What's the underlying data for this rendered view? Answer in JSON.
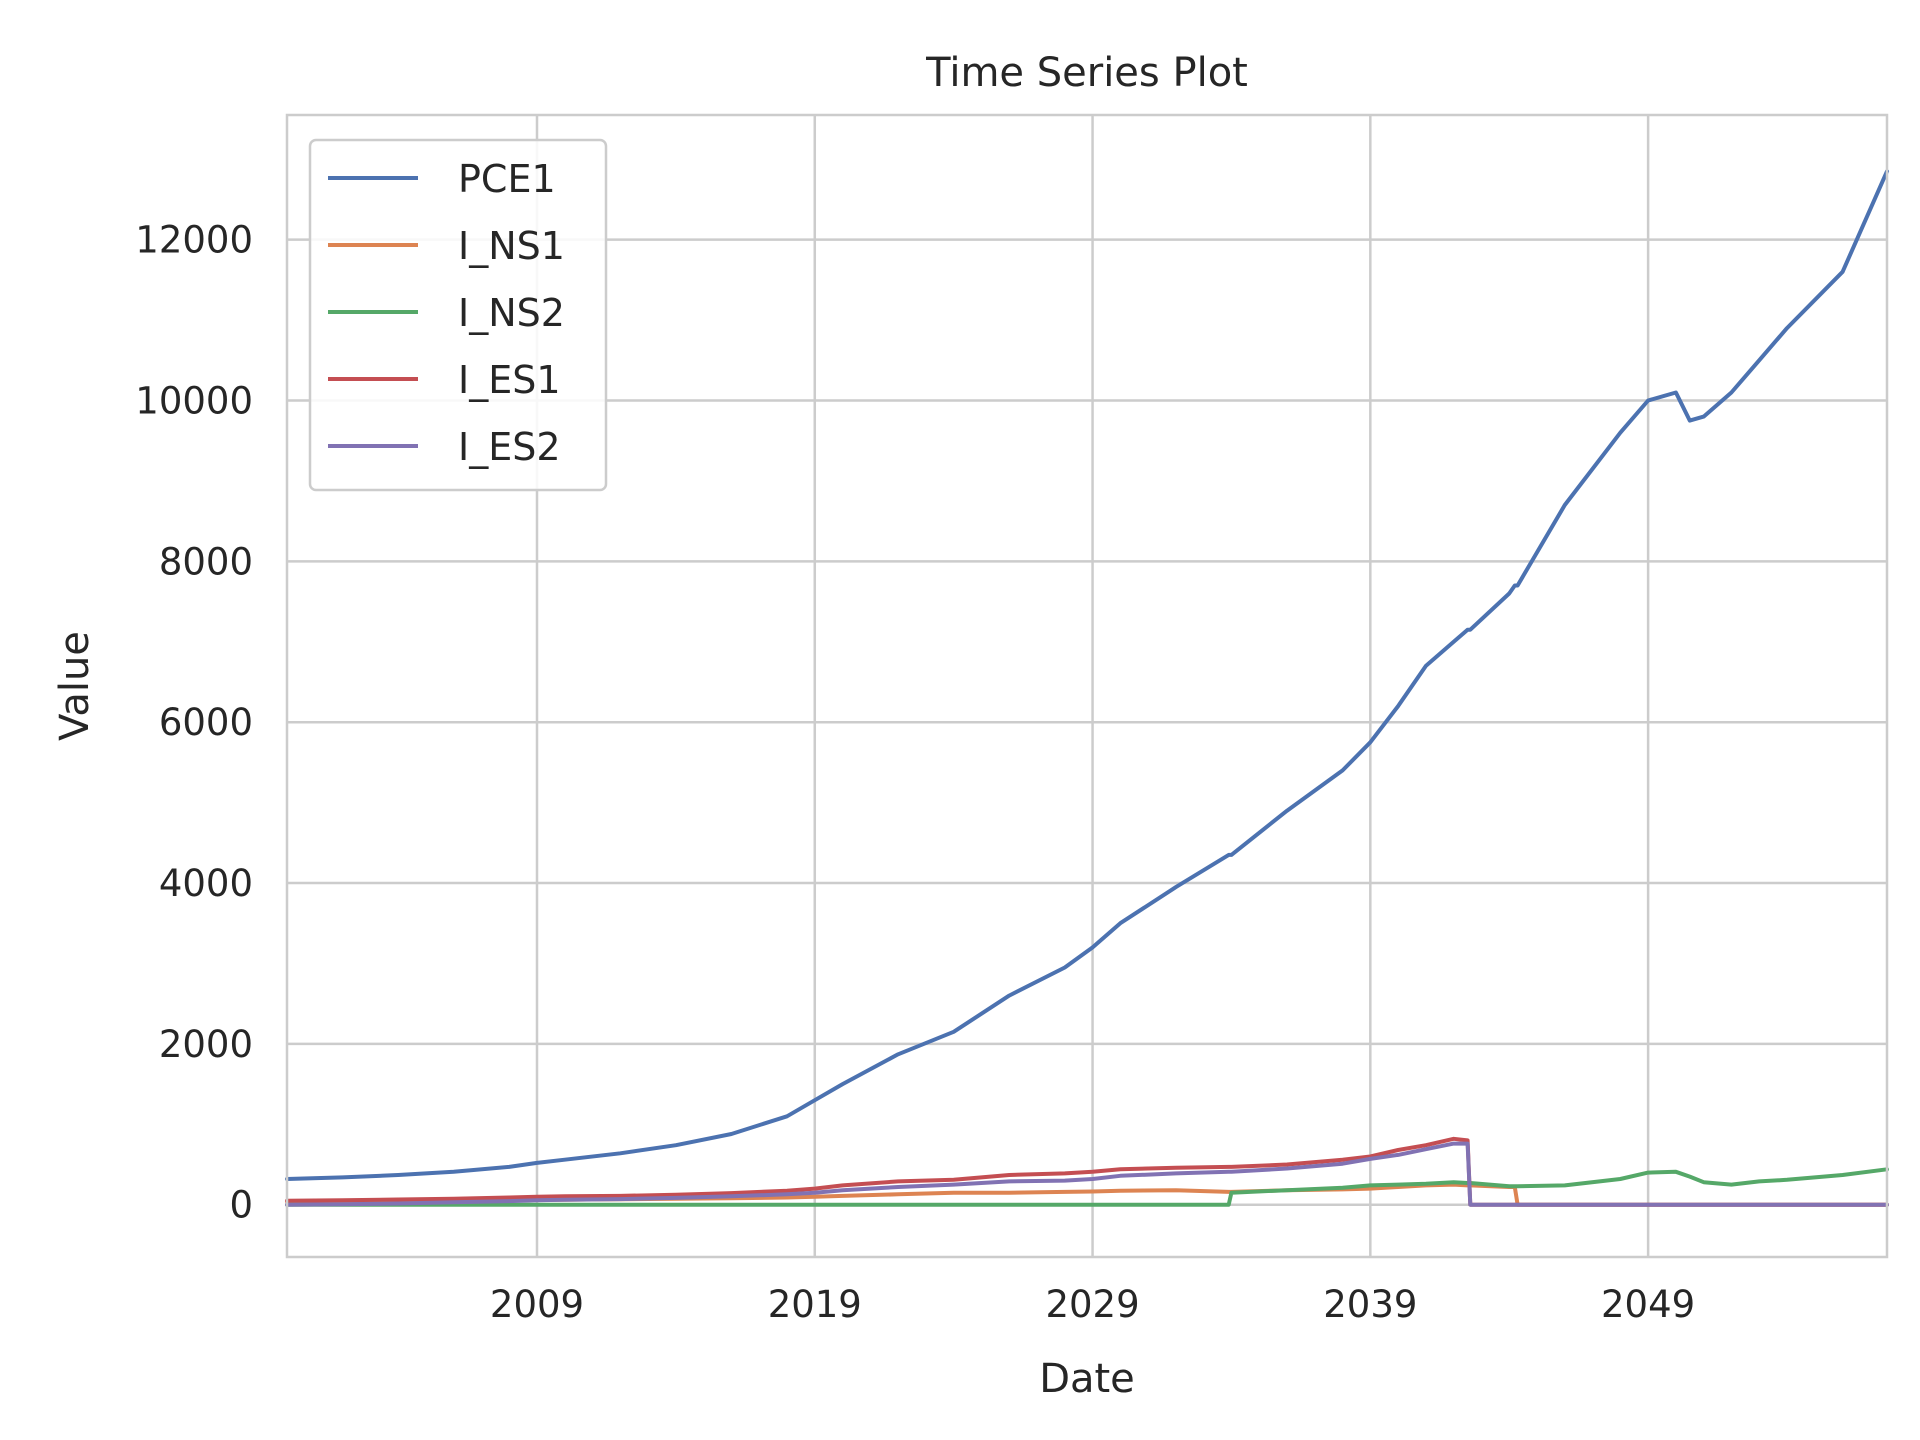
{
  "chart_data": {
    "type": "line",
    "title": "Time Series Plot",
    "xlabel": "Date",
    "ylabel": "Value",
    "x_ticks": [
      "2009",
      "2019",
      "2029",
      "2039",
      "2049"
    ],
    "y_ticks": [
      0,
      2000,
      4000,
      6000,
      8000,
      10000,
      12000
    ],
    "xlim": [
      2000.0,
      2057.6
    ],
    "ylim": [
      -650,
      13550
    ],
    "grid": true,
    "legend_position": "top-left",
    "x": [
      2000,
      2002,
      2004,
      2006,
      2008,
      2009,
      2010,
      2012,
      2014,
      2016,
      2018,
      2019,
      2020,
      2022,
      2024,
      2026,
      2028,
      2029,
      2030,
      2032,
      2033.9,
      2034,
      2036,
      2038,
      2039,
      2040,
      2041,
      2042,
      2042.5,
      2042.6,
      2044,
      2044.2,
      2044.3,
      2046,
      2048,
      2049,
      2050,
      2050.5,
      2051,
      2052,
      2053,
      2054,
      2056,
      2057.6
    ],
    "series": [
      {
        "name": "PCE1",
        "color": "#4c72b0",
        "values": [
          320,
          340,
          370,
          410,
          470,
          520,
          560,
          640,
          740,
          880,
          1100,
          1300,
          1500,
          1870,
          2150,
          2600,
          2950,
          3200,
          3500,
          3950,
          4350,
          4350,
          4900,
          5400,
          5750,
          6200,
          6700,
          7000,
          7150,
          7150,
          7600,
          7700,
          7700,
          8700,
          9600,
          10000,
          10100,
          9750,
          9800,
          10100,
          10500,
          10900,
          11600,
          12850
        ]
      },
      {
        "name": "I_NS1",
        "color": "#dd8452",
        "values": [
          40,
          42,
          45,
          50,
          55,
          60,
          62,
          68,
          75,
          80,
          90,
          100,
          110,
          130,
          150,
          150,
          160,
          165,
          175,
          180,
          160,
          160,
          180,
          190,
          200,
          220,
          240,
          250,
          240,
          240,
          220,
          220,
          0,
          0,
          0,
          0,
          0,
          0,
          0,
          0,
          0,
          0,
          0,
          0
        ]
      },
      {
        "name": "I_NS2",
        "color": "#55a868",
        "values": [
          0,
          0,
          0,
          0,
          0,
          0,
          0,
          0,
          0,
          0,
          0,
          0,
          0,
          0,
          0,
          0,
          0,
          0,
          0,
          0,
          0,
          150,
          180,
          210,
          240,
          250,
          260,
          280,
          270,
          270,
          230,
          230,
          230,
          240,
          320,
          400,
          410,
          350,
          280,
          250,
          290,
          310,
          370,
          440
        ]
      },
      {
        "name": "I_ES1",
        "color": "#c44e52",
        "values": [
          50,
          55,
          65,
          75,
          90,
          100,
          105,
          110,
          125,
          145,
          175,
          200,
          240,
          290,
          310,
          370,
          390,
          410,
          440,
          460,
          470,
          470,
          500,
          560,
          600,
          680,
          740,
          820,
          800,
          0,
          0,
          0,
          0,
          0,
          0,
          0,
          0,
          0,
          0,
          0,
          0,
          0,
          0,
          0
        ]
      },
      {
        "name": "I_ES2",
        "color": "#8172b3",
        "values": [
          0,
          5,
          15,
          30,
          45,
          55,
          62,
          70,
          85,
          105,
          130,
          150,
          180,
          220,
          250,
          290,
          300,
          320,
          360,
          390,
          410,
          410,
          450,
          510,
          570,
          620,
          690,
          760,
          760,
          0,
          0,
          0,
          0,
          0,
          0,
          0,
          0,
          0,
          0,
          0,
          0,
          0,
          0,
          0
        ]
      }
    ]
  }
}
